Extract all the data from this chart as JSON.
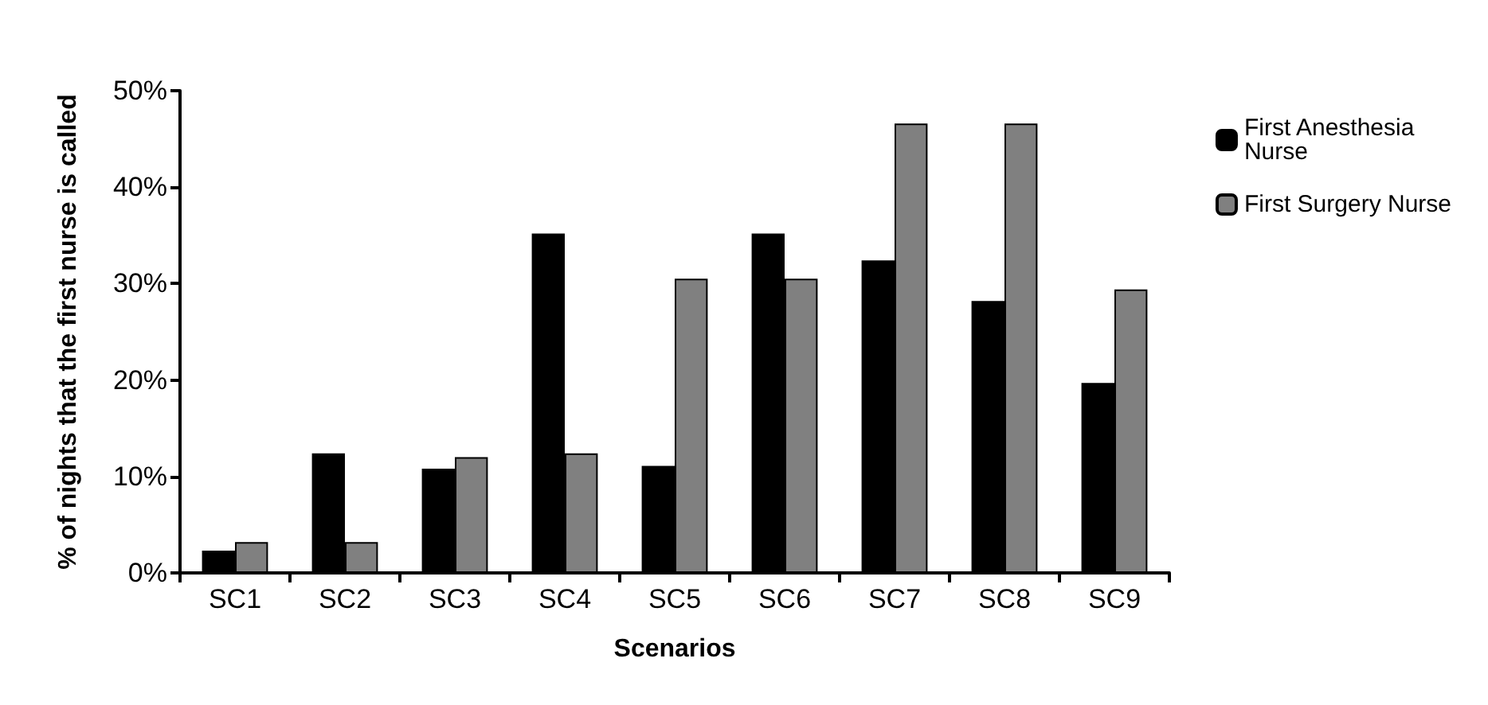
{
  "chart_data": {
    "type": "bar",
    "xlabel": "Scenarios",
    "ylabel": "% of nights that the first nurse is called",
    "categories": [
      "SC1",
      "SC2",
      "SC3",
      "SC4",
      "SC5",
      "SC6",
      "SC7",
      "SC8",
      "SC9"
    ],
    "series": [
      {
        "name": "First Anesthesia Nurse",
        "color": "#000000",
        "values": [
          2.3,
          12.4,
          10.8,
          35.2,
          11.1,
          35.2,
          32.4,
          28.2,
          19.7
        ]
      },
      {
        "name": "First Surgery Nurse",
        "color": "#808080",
        "values": [
          3.2,
          3.2,
          12.0,
          12.4,
          30.5,
          30.5,
          46.6,
          46.6,
          29.4
        ]
      }
    ],
    "ylim": [
      0,
      50
    ],
    "yticks": [
      {
        "value": 0,
        "label": "0%"
      },
      {
        "value": 10,
        "label": "10%"
      },
      {
        "value": 20,
        "label": "20%"
      },
      {
        "value": 30,
        "label": "30%"
      },
      {
        "value": 40,
        "label": "40%"
      },
      {
        "value": 50,
        "label": "50%"
      }
    ],
    "grid": false,
    "legend": "right"
  }
}
